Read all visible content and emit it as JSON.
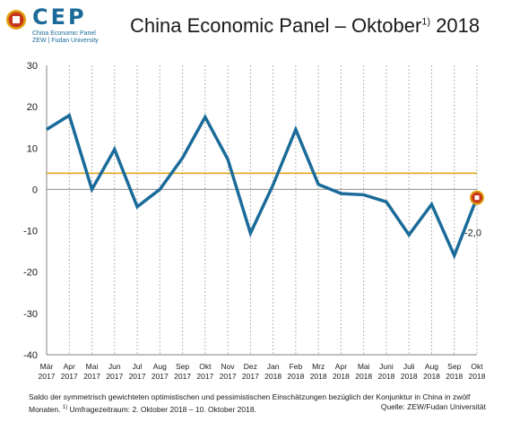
{
  "logo": {
    "text": "CEP",
    "sub1": "China Economic Panel",
    "sub2": "ZEW | Fudan University"
  },
  "header": {
    "title_main": "China Economic Panel – Oktober",
    "title_sup": "1)",
    "title_year": " 2018"
  },
  "chart_data": {
    "type": "line",
    "title": "China Economic Panel – Oktober 2018",
    "categories": [
      [
        "Mär",
        "2017"
      ],
      [
        "Apr",
        "2017"
      ],
      [
        "Mai",
        "2017"
      ],
      [
        "Jun",
        "2017"
      ],
      [
        "Jul",
        "2017"
      ],
      [
        "Aug",
        "2017"
      ],
      [
        "Sep",
        "2017"
      ],
      [
        "Okt",
        "2017"
      ],
      [
        "Nov",
        "2017"
      ],
      [
        "Dez",
        "2017"
      ],
      [
        "Jan",
        "2018"
      ],
      [
        "Feb",
        "2018"
      ],
      [
        "Mrz",
        "2018"
      ],
      [
        "Apr",
        "2018"
      ],
      [
        "Mai",
        "2018"
      ],
      [
        "Juni",
        "2018"
      ],
      [
        "Juli",
        "2018"
      ],
      [
        "Aug",
        "2018"
      ],
      [
        "Sep",
        "2018"
      ],
      [
        "Okt",
        "2018"
      ]
    ],
    "series": [
      {
        "values": [
          14.5,
          17.9,
          0.0,
          9.7,
          -4.2,
          0.0,
          7.6,
          17.5,
          7.3,
          -10.6,
          1.1,
          14.5,
          1.2,
          -1.0,
          -1.3,
          -3.0,
          -11.0,
          -3.6,
          -16.0,
          -2.0
        ],
        "color": "#1a6b99"
      }
    ],
    "reference_line": {
      "value": 3.9,
      "color": "#e0a10e"
    },
    "last_value_label": "-2,0",
    "ylim": [
      -40,
      30
    ],
    "yticks": [
      30,
      20,
      10,
      0,
      -10,
      -20,
      -30,
      -40
    ],
    "grid": "vertical dotted",
    "marker_color": "#c8361e"
  },
  "footnote": {
    "line1": "Saldo der symmetrisch gewichteten optimistischen und pessimistischen Einschätzungen bezüglich der Konjunktur in China in zwölf",
    "line2_a": "Monaten.",
    "line2_sup": "1)",
    "line2_b": "Umfragezeitraum: 2. Oktober 2018 – 10. Oktober 2018.",
    "source": "Quelle: ZEW/Fudan Universität"
  }
}
